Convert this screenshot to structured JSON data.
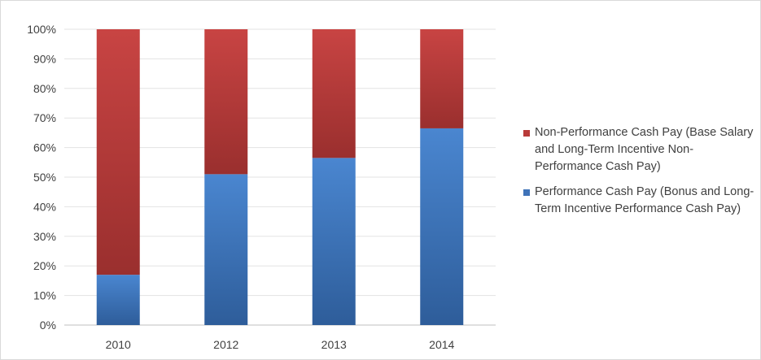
{
  "chart_data": {
    "type": "bar",
    "stacked": true,
    "percent_stacked": true,
    "categories": [
      "2010",
      "2012",
      "2013",
      "2014"
    ],
    "series": [
      {
        "name": "Performance Cash Pay (Bonus and Long-Term Incentive Performance Cash Pay)",
        "values": [
          17,
          51,
          56.5,
          66.5
        ],
        "color": "#3f73b8"
      },
      {
        "name": "Non-Performance Cash Pay (Base Salary and Long-Term Incentive Non-Performance Cash Pay)",
        "values": [
          83,
          49,
          43.5,
          33.5
        ],
        "color": "#b83a39"
      }
    ],
    "title": "",
    "xlabel": "",
    "ylabel": "",
    "ylim": [
      0,
      100
    ],
    "y_ticks": [
      "0%",
      "10%",
      "20%",
      "30%",
      "40%",
      "50%",
      "60%",
      "70%",
      "80%",
      "90%",
      "100%"
    ],
    "grid": true,
    "legend_position": "right"
  },
  "legend": {
    "non_performance": "Non-Performance Cash Pay (Base Salary and Long-Term Incentive Non-Performance Cash Pay)",
    "performance": "Performance Cash Pay (Bonus and Long-Term Incentive Performance Cash Pay)"
  }
}
